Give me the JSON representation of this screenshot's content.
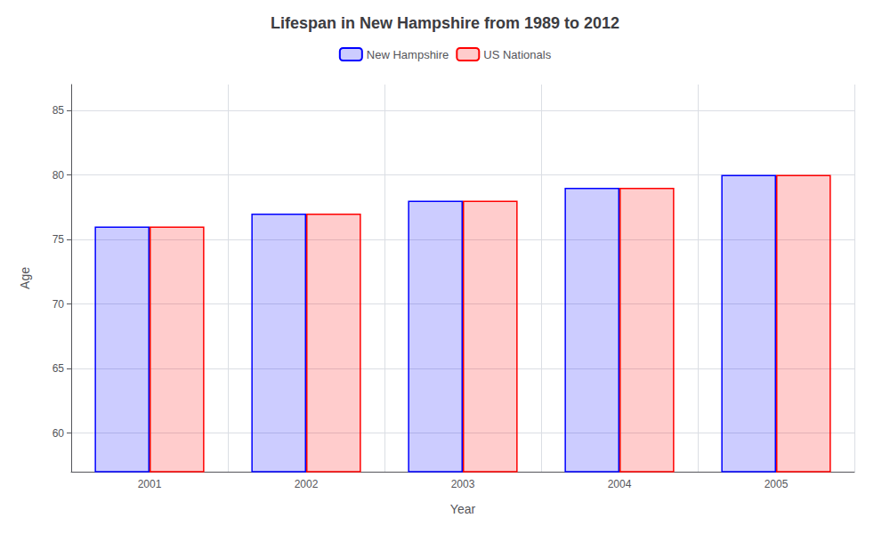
{
  "chart_data": {
    "type": "bar",
    "title": "Lifespan in New Hampshire from 1989 to 2012",
    "xlabel": "Year",
    "ylabel": "Age",
    "categories": [
      "2001",
      "2002",
      "2003",
      "2004",
      "2005"
    ],
    "series": [
      {
        "name": "New Hampshire",
        "color": "#0000ff",
        "values": [
          76,
          77,
          78,
          79,
          80
        ]
      },
      {
        "name": "US Nationals",
        "color": "#ff0000",
        "values": [
          76,
          77,
          78,
          79,
          80
        ]
      }
    ],
    "ylim": [
      57,
      87
    ],
    "yticks": [
      60,
      65,
      70,
      75,
      80,
      85
    ],
    "grid": true,
    "legend": "top"
  }
}
